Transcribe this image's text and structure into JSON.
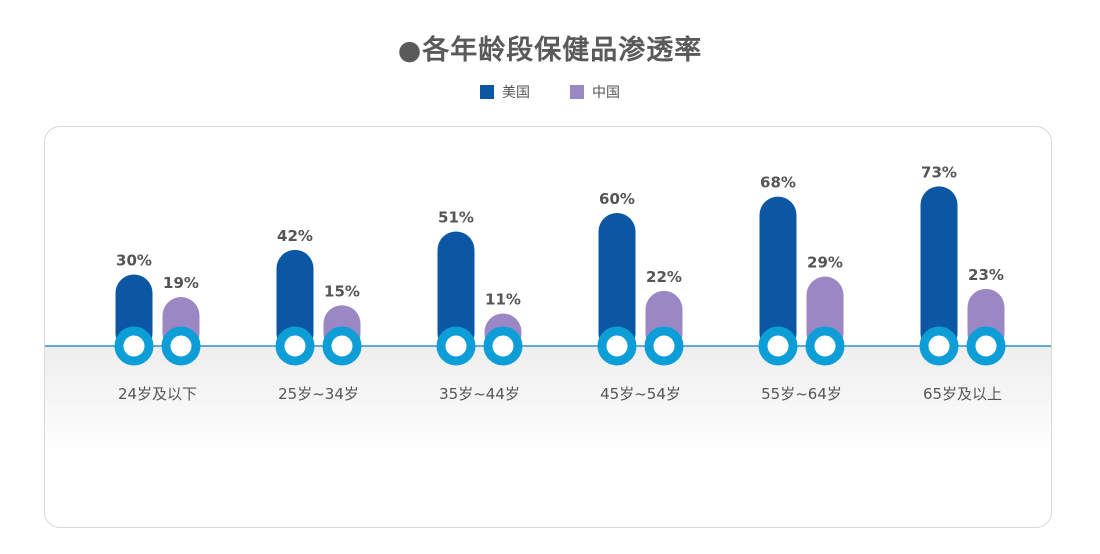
{
  "chart_data": {
    "type": "bar",
    "title": "●各年龄段保健品渗透率",
    "categories": [
      "24岁及以下",
      "25岁~34岁",
      "35岁~44岁",
      "45岁~54岁",
      "55岁~64岁",
      "65岁及以上"
    ],
    "series": [
      {
        "name": "美国",
        "values": [
          30,
          42,
          51,
          60,
          68,
          73
        ],
        "labels": [
          "30%",
          "42%",
          "51%",
          "60%",
          "68%",
          "73%"
        ],
        "color": "#0b57a4"
      },
      {
        "name": "中国",
        "values": [
          19,
          15,
          11,
          22,
          29,
          23
        ],
        "labels": [
          "19%",
          "15%",
          "11%",
          "22%",
          "29%",
          "23%"
        ],
        "color": "#9b87c4"
      }
    ],
    "value_format": "percent",
    "legend_position": "top-center",
    "grid": false,
    "colors": {
      "baseline": "#2f8fd0",
      "marker_ring": "#0d9ed8",
      "label_text": "#555555"
    }
  }
}
